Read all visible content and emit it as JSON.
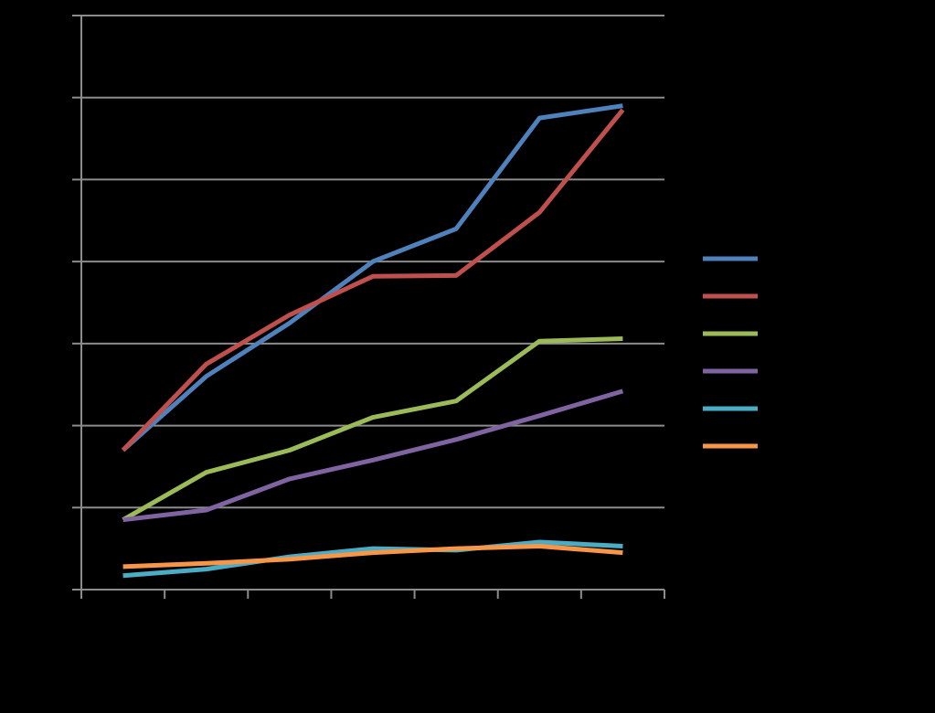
{
  "chart_data": {
    "type": "line",
    "title": "",
    "xlabel": "",
    "ylabel": "",
    "categories": [
      "",
      "",
      "",
      "",
      "",
      "",
      ""
    ],
    "ylim": [
      0,
      7
    ],
    "y_gridlines": [
      1,
      2,
      3,
      4,
      5,
      6,
      7
    ],
    "grid": true,
    "legend_position": "right",
    "series": [
      {
        "color": "#4f81bd",
        "values": [
          1.7,
          2.6,
          3.25,
          4.0,
          4.4,
          5.75,
          5.9
        ]
      },
      {
        "color": "#c0504d",
        "values": [
          1.7,
          2.75,
          3.35,
          3.82,
          3.83,
          4.6,
          5.85
        ]
      },
      {
        "color": "#9bbb59",
        "values": [
          0.85,
          1.43,
          1.7,
          2.1,
          2.3,
          3.03,
          3.06
        ]
      },
      {
        "color": "#8064a2",
        "values": [
          0.85,
          0.97,
          1.35,
          1.58,
          1.83,
          2.12,
          2.42
        ]
      },
      {
        "color": "#4bacc6",
        "values": [
          0.17,
          0.25,
          0.4,
          0.5,
          0.48,
          0.58,
          0.53
        ]
      },
      {
        "color": "#f79646",
        "values": [
          0.28,
          0.32,
          0.37,
          0.45,
          0.5,
          0.53,
          0.45
        ]
      }
    ]
  }
}
